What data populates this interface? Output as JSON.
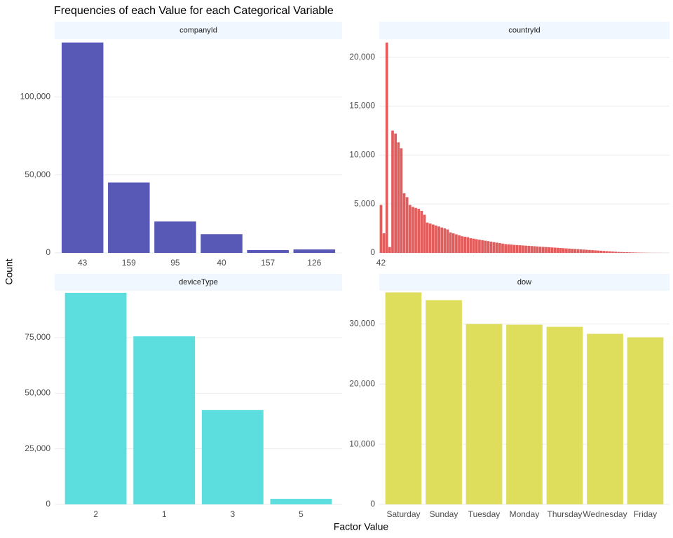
{
  "title": "Frequencies of each Value for each Categorical Variable",
  "x_label": "Factor Value",
  "y_label": "Count",
  "chart_data": [
    {
      "type": "bar",
      "title": "companyId",
      "color": "#4b4bb0",
      "categories": [
        "43",
        "159",
        "95",
        "40",
        "157",
        "126"
      ],
      "values": [
        134800,
        45100,
        20100,
        12000,
        1800,
        2200
      ],
      "ylim": [
        0,
        136000
      ],
      "yticks": [
        0,
        {
          "value": 50000,
          "label": "50,000"
        },
        {
          "value": 100000,
          "label": "100,000"
        }
      ],
      "grid": true
    },
    {
      "type": "bar",
      "title": "countryId",
      "color": "#e05050",
      "categories": [
        "42",
        null,
        null,
        null,
        null,
        null,
        null,
        null,
        null,
        null,
        null,
        null,
        null,
        null,
        null,
        null,
        null,
        null,
        null,
        null,
        null,
        null,
        null,
        null,
        null,
        null,
        null,
        null,
        null,
        null,
        null,
        null,
        null,
        null,
        null,
        null,
        null,
        null,
        null,
        null,
        null,
        null,
        null,
        null,
        null,
        null,
        null,
        null,
        null,
        null,
        null,
        null,
        null,
        null,
        null,
        null,
        null,
        null,
        null,
        null,
        null,
        null,
        null,
        null,
        null,
        null,
        null,
        null,
        null,
        null,
        null,
        null,
        null,
        null,
        null,
        null,
        null,
        null,
        null,
        null,
        null,
        null,
        null,
        null,
        null,
        null,
        null,
        null,
        null,
        null,
        null,
        null,
        null,
        null,
        null,
        null,
        null,
        null,
        null,
        null
      ],
      "values": [
        4900,
        2000,
        21500,
        600,
        12500,
        12200,
        11300,
        10700,
        6100,
        5700,
        4900,
        4700,
        4600,
        4500,
        4300,
        3900,
        3100,
        3000,
        2900,
        2800,
        2700,
        2600,
        2500,
        2400,
        2100,
        2000,
        1900,
        1800,
        1700,
        1650,
        1600,
        1500,
        1450,
        1400,
        1350,
        1300,
        1250,
        1200,
        1150,
        1100,
        1050,
        1000,
        950,
        900,
        870,
        850,
        820,
        800,
        780,
        760,
        740,
        720,
        700,
        680,
        660,
        640,
        620,
        600,
        580,
        560,
        540,
        520,
        500,
        480,
        460,
        440,
        420,
        400,
        380,
        360,
        340,
        320,
        300,
        280,
        260,
        240,
        220,
        200,
        180,
        160,
        140,
        120,
        100,
        90,
        80,
        70,
        60,
        50,
        40,
        30,
        25,
        20,
        15,
        12,
        10,
        8,
        6,
        4,
        2,
        1
      ],
      "ylim": [
        0,
        21700
      ],
      "yticks": [
        0,
        {
          "value": 5000,
          "label": "5,000"
        },
        {
          "value": 10000,
          "label": "10,000"
        },
        {
          "value": 15000,
          "label": "15,000"
        },
        {
          "value": 20000,
          "label": "20,000"
        }
      ],
      "grid": true
    },
    {
      "type": "bar",
      "title": "deviceType",
      "color": "#50dcdc",
      "categories": [
        "2",
        "1",
        "3",
        "5"
      ],
      "values": [
        95200,
        75600,
        42500,
        2500
      ],
      "ylim": [
        0,
        95500
      ],
      "yticks": [
        0,
        {
          "value": 25000,
          "label": "25,000"
        },
        {
          "value": 50000,
          "label": "50,000"
        },
        {
          "value": 75000,
          "label": "75,000"
        }
      ],
      "grid": true
    },
    {
      "type": "bar",
      "title": "dow",
      "color": "#dcdc50",
      "categories": [
        "Saturday",
        "Sunday",
        "Tuesday",
        "Monday",
        "Thursday",
        "Wednesday",
        "Friday"
      ],
      "values": [
        35250,
        33970,
        30000,
        29880,
        29530,
        28360,
        27780
      ],
      "ylim": [
        0,
        35300
      ],
      "yticks": [
        0,
        {
          "value": 10000,
          "label": "10,000"
        },
        {
          "value": 20000,
          "label": "20,000"
        },
        {
          "value": 30000,
          "label": "30,000"
        }
      ],
      "grid": true
    }
  ]
}
